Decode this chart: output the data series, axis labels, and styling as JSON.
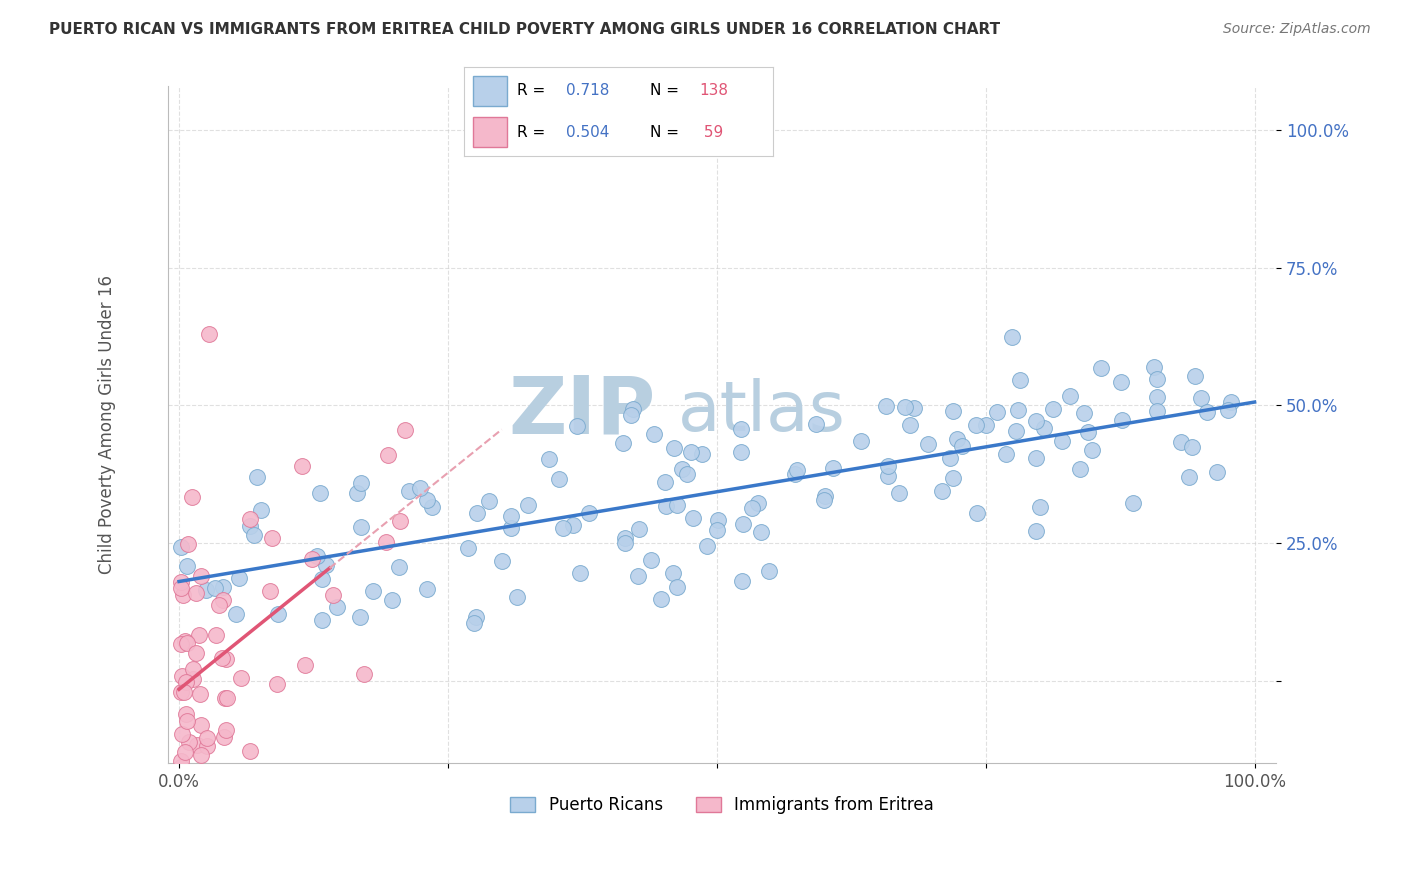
{
  "title": "PUERTO RICAN VS IMMIGRANTS FROM ERITREA CHILD POVERTY AMONG GIRLS UNDER 16 CORRELATION CHART",
  "source": "Source: ZipAtlas.com",
  "ylabel": "Child Poverty Among Girls Under 16",
  "watermark_top": "ZIP",
  "watermark_bot": "atlas",
  "blue_R": 0.718,
  "blue_N": 138,
  "pink_R": 0.504,
  "pink_N": 59,
  "blue_color": "#b8d0ea",
  "blue_edge_color": "#7aaacf",
  "pink_color": "#f5b8cb",
  "pink_edge_color": "#e07898",
  "blue_line_color": "#3a78c9",
  "pink_line_color": "#e05575",
  "pink_line_dashed_color": "#e8a0b0",
  "background_color": "#ffffff",
  "grid_color": "#cccccc",
  "title_color": "#333333",
  "watermark_color_zip": "#b8cfe0",
  "watermark_color_atlas": "#b8cfe0",
  "ytick_color": "#4472c4",
  "legend_R_color": "#4472c4",
  "legend_N_color": "#e05575"
}
